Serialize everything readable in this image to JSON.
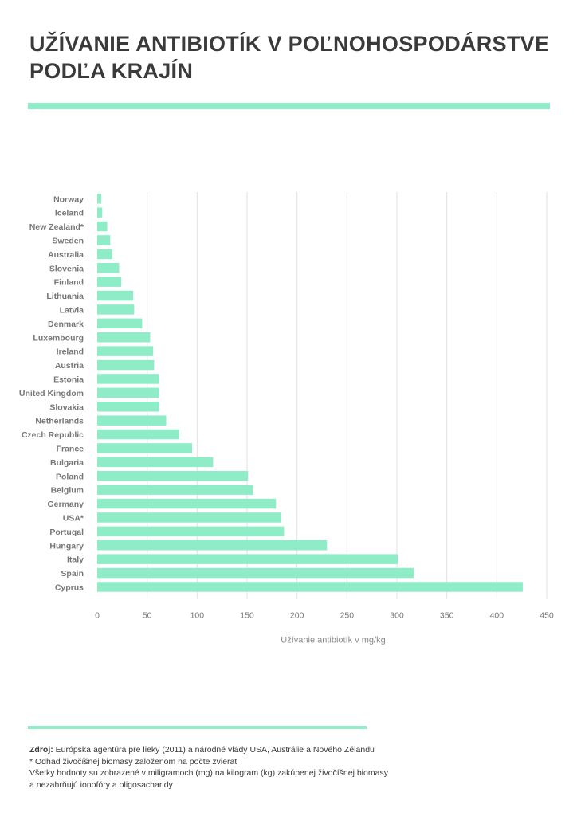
{
  "title_lines": [
    "UŽÍVANIE ANTIBIOTÍK V POĽNOHOSPODÁRSTVE",
    "PODĽA KRAJÍN"
  ],
  "accent_color": "#8eedc7",
  "chart_data": {
    "type": "bar",
    "orientation": "horizontal",
    "categories": [
      "Norway",
      "Iceland",
      "New Zealand*",
      "Sweden",
      "Australia",
      "Slovenia",
      "Finland",
      "Lithuania",
      "Latvia",
      "Denmark",
      "Luxembourg",
      "Ireland",
      "Austria",
      "Estonia",
      "United Kingdom",
      "Slovakia",
      "Netherlands",
      "Czech Republic",
      "France",
      "Bulgaria",
      "Poland",
      "Belgium",
      "Germany",
      "USA*",
      "Portugal",
      "Hungary",
      "Italy",
      "Spain",
      "Cyprus"
    ],
    "values": [
      4,
      5,
      10,
      13,
      15,
      22,
      24,
      36,
      37,
      45,
      53,
      56,
      57,
      62,
      62,
      62,
      69,
      82,
      95,
      116,
      151,
      156,
      179,
      184,
      187,
      230,
      301,
      317,
      426
    ],
    "xlabel": "Užívanie antibiotík v mg/kg",
    "ylabel": "",
    "xlim": [
      0,
      450
    ],
    "xticks": [
      0,
      50,
      100,
      150,
      200,
      250,
      300,
      350,
      400,
      450
    ],
    "grid": true,
    "bar_color": "#8eedc7",
    "grid_color": "#e2e2e2"
  },
  "footer": {
    "source_label": "Zdroj:",
    "source_text": " Európska agentúra pre lieky (2011) a národné vlády USA, Austrálie a Nového Zélandu",
    "note": "* Odhad živočíšnej biomasy založenom na počte zvierat",
    "desc_line1": "Všetky hodnoty su zobrazené v miligramoch (mg) na kilogram (kg) zakúpenej živočíšnej biomasy",
    "desc_line2": "a nezahrňujú ionofóry a oligosacharidy"
  }
}
